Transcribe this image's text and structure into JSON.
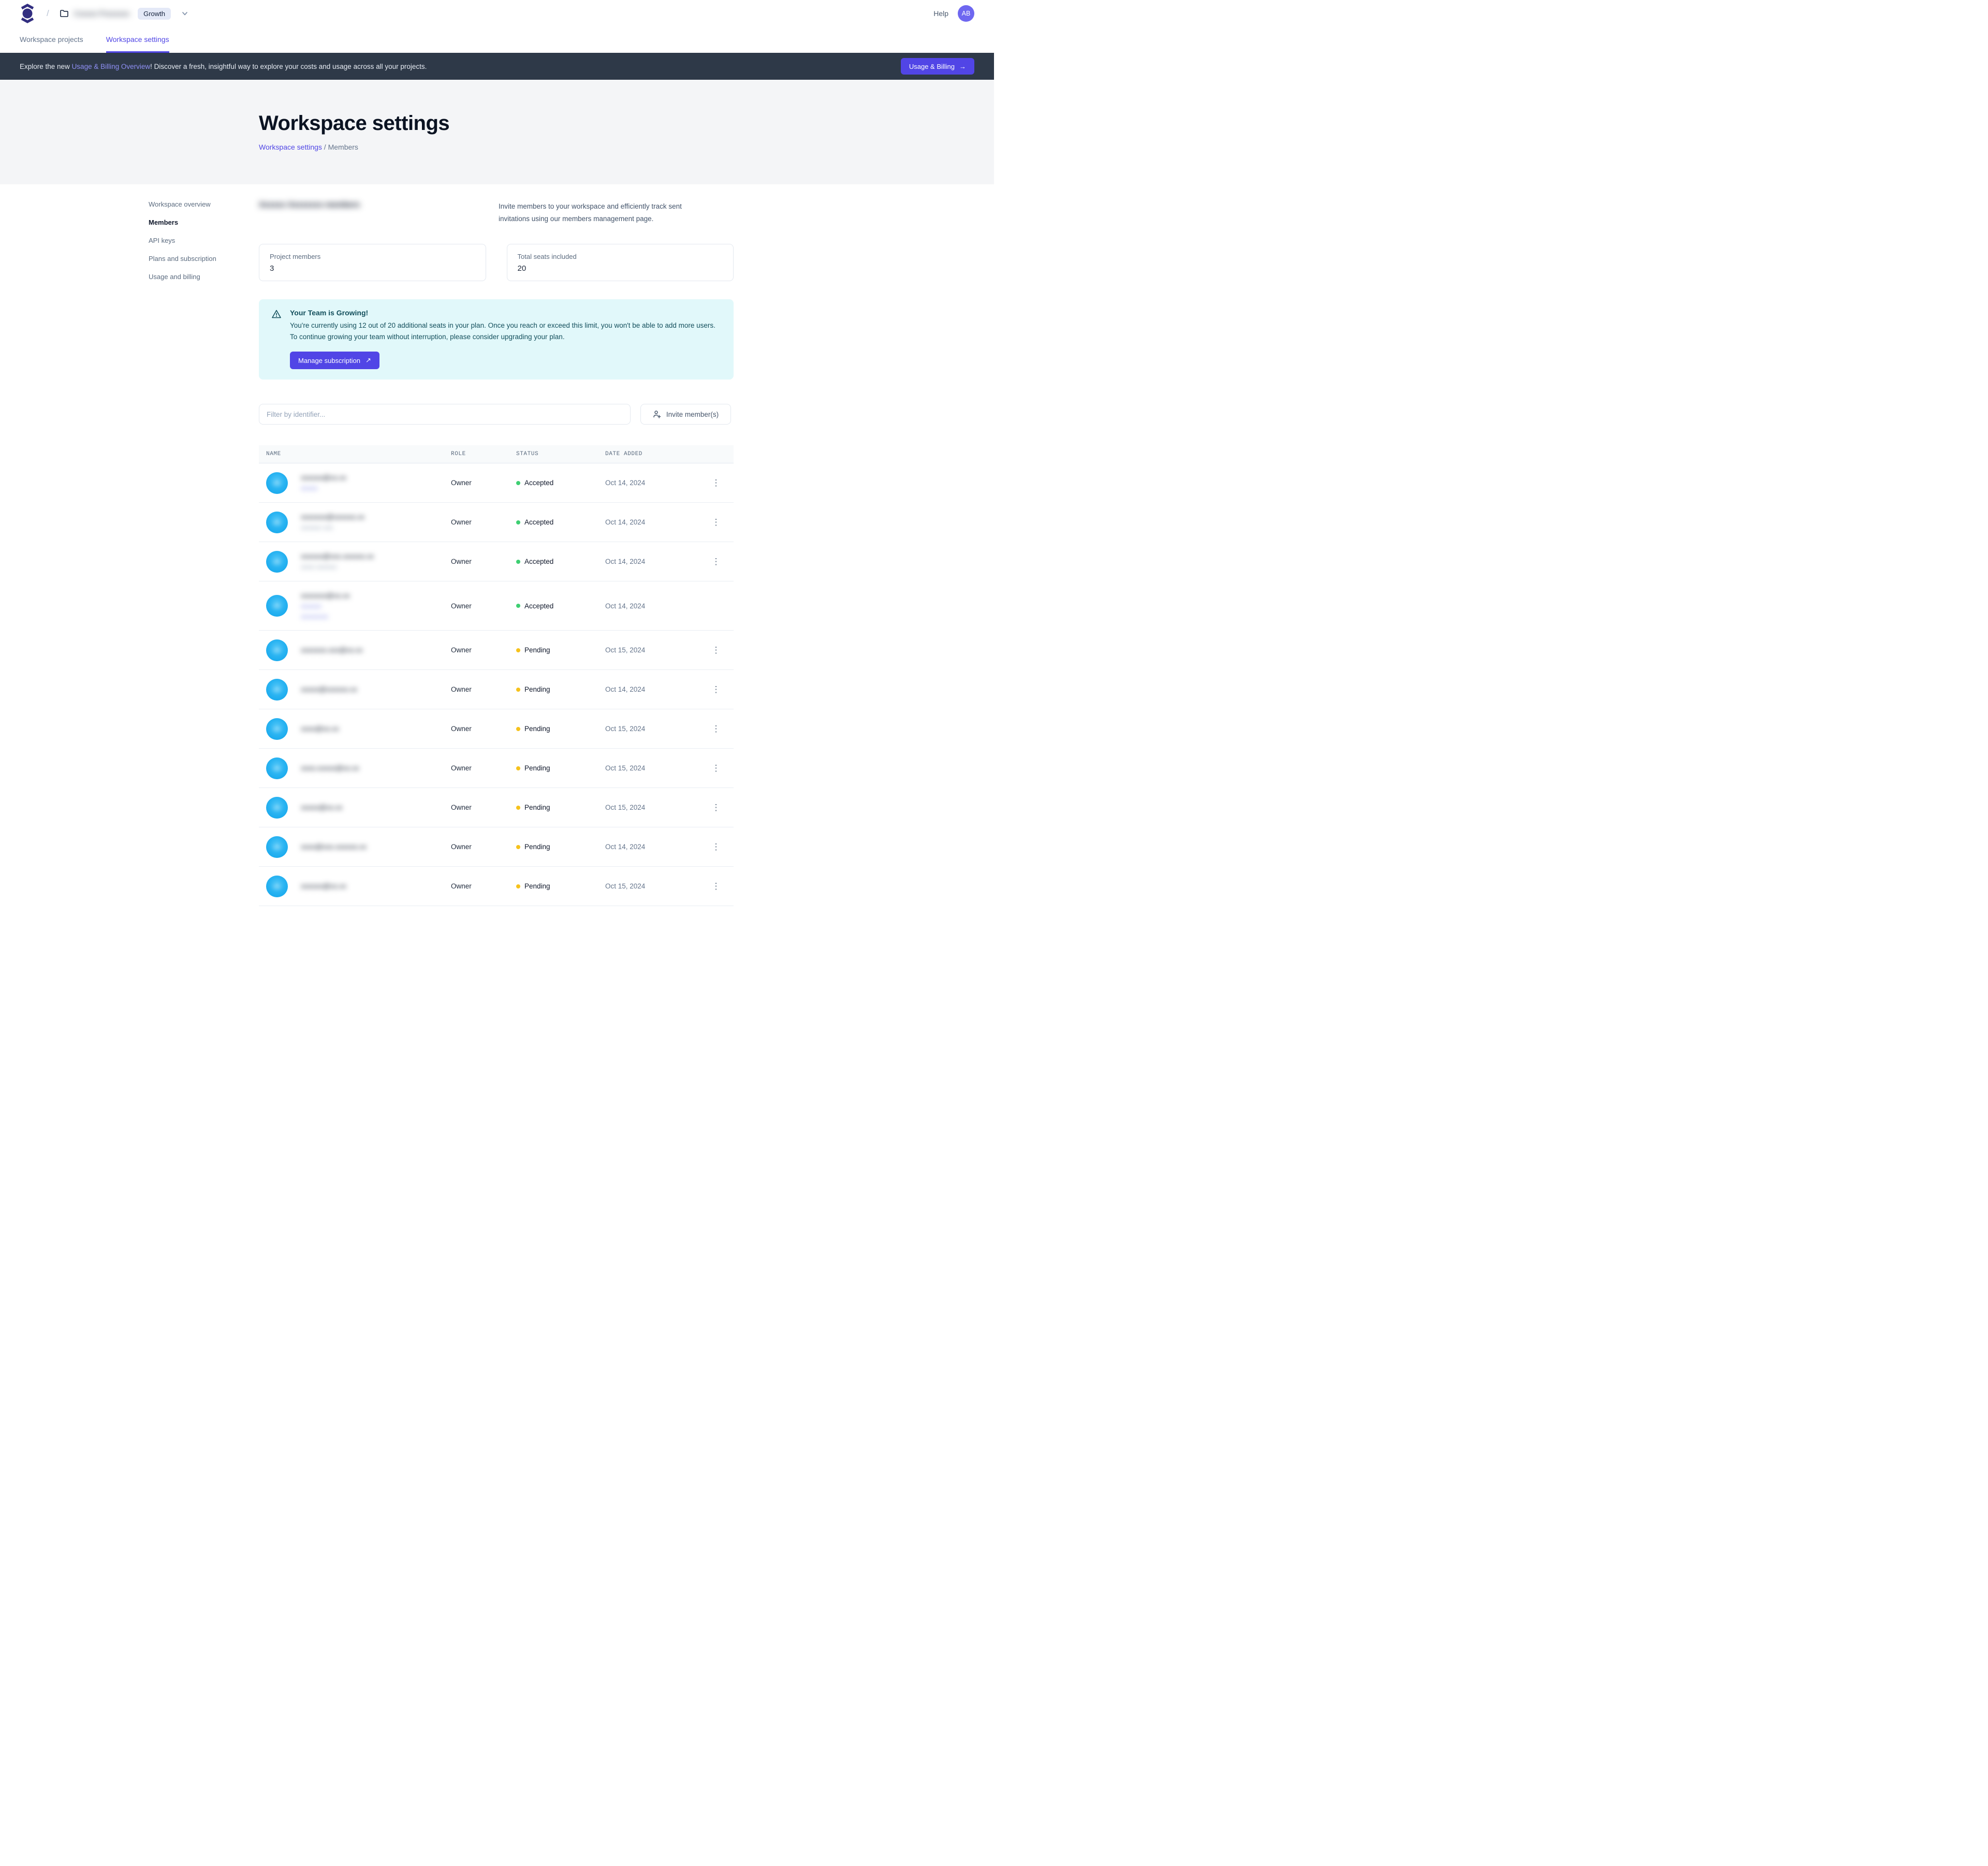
{
  "header": {
    "breadcrumb_separator": "/",
    "workspace_name_redacted": "Cxxxxx Pxxxxxxx",
    "plan_badge": "Growth",
    "help_label": "Help",
    "avatar_initials": "AB"
  },
  "tabs": [
    {
      "label": "Workspace projects",
      "active": false
    },
    {
      "label": "Workspace settings",
      "active": true
    }
  ],
  "banner": {
    "text_before": "Explore the new ",
    "link_text": "Usage & Billing Overview",
    "text_after": "! Discover a fresh, insightful way to explore your costs and usage across all your projects.",
    "button_label": "Usage & Billing",
    "button_arrow": "→"
  },
  "page_header": {
    "title": "Workspace settings",
    "breadcrumb_link": "Workspace settings",
    "breadcrumb_separator": "/",
    "breadcrumb_current": "Members"
  },
  "sidebar": {
    "items": [
      {
        "label": "Workspace overview",
        "active": false
      },
      {
        "label": "Members",
        "active": true
      },
      {
        "label": "API keys",
        "active": false
      },
      {
        "label": "Plans and subscription",
        "active": false
      },
      {
        "label": "Usage and billing",
        "active": false
      }
    ]
  },
  "members_section": {
    "heading_redacted": "Xxxxxx Xxxxxxxx members",
    "description": "Invite members to your workspace and efficiently track sent invitations using our members management page.",
    "stats": [
      {
        "label": "Project members",
        "value": "3"
      },
      {
        "label": "Total seats included",
        "value": "20"
      }
    ],
    "alert": {
      "title": "Your Team is Growing!",
      "body": "You're currently using 12 out of 20 additional seats in your plan. Once you reach or exceed this limit, you won't be able to add more users. To continue growing your team without interruption, please consider upgrading your plan.",
      "button_label": "Manage subscription",
      "button_arrow": "↗",
      "background": "#e1f8fa",
      "text_color": "#134f5c"
    },
    "filter_placeholder": "Filter by identifier...",
    "invite_button_label": "Invite member(s)"
  },
  "table": {
    "columns": [
      "NAME",
      "ROLE",
      "STATUS",
      "DATE ADDED"
    ],
    "status_colors": {
      "accepted": "#3ecf72",
      "pending": "#f6c21c"
    },
    "accent_color": "#5046e5",
    "rows": [
      {
        "email_redacted": "xoxoxo@xo.xx",
        "subs_redacted": [
          "xoxox"
        ],
        "sub_style": "purple",
        "role": "Owner",
        "status": "Accepted",
        "status_key": "accepted",
        "date": "Oct 14, 2024",
        "menu": true,
        "tall": false
      },
      {
        "email_redacted": "xoxoxox@xoxoxo.xx",
        "subs_redacted": [
          "xoxoxo xox"
        ],
        "sub_style": "gray",
        "role": "Owner",
        "status": "Accepted",
        "status_key": "accepted",
        "date": "Oct 14, 2024",
        "menu": true,
        "tall": false
      },
      {
        "email_redacted": "xoxoxo@xox.xoxoxo.xx",
        "subs_redacted": [
          "xoxo xoxoxo"
        ],
        "sub_style": "gray",
        "role": "Owner",
        "status": "Accepted",
        "status_key": "accepted",
        "date": "Oct 14, 2024",
        "menu": true,
        "tall": false
      },
      {
        "email_redacted": "xoxoxox@xo.xx",
        "subs_redacted": [
          "xoxoxo",
          "xoxoxoxo"
        ],
        "sub_style": "purple",
        "role": "Owner",
        "status": "Accepted",
        "status_key": "accepted",
        "date": "Oct 14, 2024",
        "menu": false,
        "tall": true
      },
      {
        "email_redacted": "xoxoxox.xox@xo.xx",
        "subs_redacted": [],
        "sub_style": "gray",
        "role": "Owner",
        "status": "Pending",
        "status_key": "pending",
        "date": "Oct 15, 2024",
        "menu": true,
        "tall": false
      },
      {
        "email_redacted": "xoxox@xoxoxo.xx",
        "subs_redacted": [],
        "sub_style": "gray",
        "role": "Owner",
        "status": "Pending",
        "status_key": "pending",
        "date": "Oct 14, 2024",
        "menu": true,
        "tall": false
      },
      {
        "email_redacted": "xoxo@xo.xx",
        "subs_redacted": [],
        "sub_style": "gray",
        "role": "Owner",
        "status": "Pending",
        "status_key": "pending",
        "date": "Oct 15, 2024",
        "menu": true,
        "tall": false
      },
      {
        "email_redacted": "xoxo.xoxox@xo.xx",
        "subs_redacted": [],
        "sub_style": "gray",
        "role": "Owner",
        "status": "Pending",
        "status_key": "pending",
        "date": "Oct 15, 2024",
        "menu": true,
        "tall": false
      },
      {
        "email_redacted": "xoxox@xo.xx",
        "subs_redacted": [],
        "sub_style": "gray",
        "role": "Owner",
        "status": "Pending",
        "status_key": "pending",
        "date": "Oct 15, 2024",
        "menu": true,
        "tall": false
      },
      {
        "email_redacted": "xoxo@xox.xoxoxo.xx",
        "subs_redacted": [],
        "sub_style": "gray",
        "role": "Owner",
        "status": "Pending",
        "status_key": "pending",
        "date": "Oct 14, 2024",
        "menu": true,
        "tall": false
      },
      {
        "email_redacted": "xoxoxo@xo.xx",
        "subs_redacted": [],
        "sub_style": "gray",
        "role": "Owner",
        "status": "Pending",
        "status_key": "pending",
        "date": "Oct 15, 2024",
        "menu": true,
        "tall": false
      }
    ]
  }
}
